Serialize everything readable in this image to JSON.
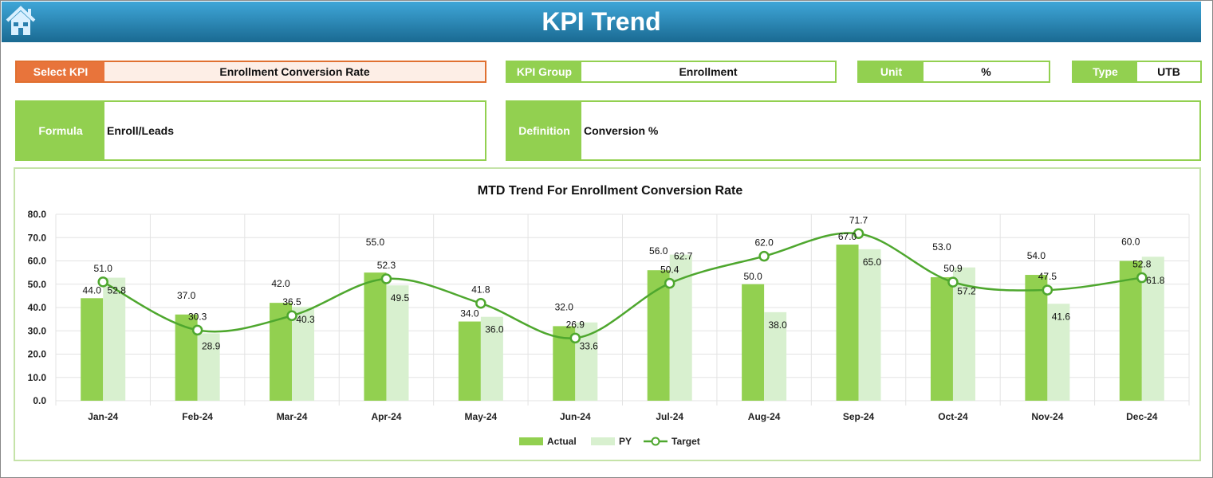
{
  "header": {
    "title": "KPI Trend",
    "home_icon": "home-icon"
  },
  "fields": {
    "select_kpi": {
      "label": "Select KPI",
      "value": "Enrollment Conversion Rate"
    },
    "kpi_group": {
      "label": "KPI Group",
      "value": "Enrollment"
    },
    "unit": {
      "label": "Unit",
      "value": "%"
    },
    "type": {
      "label": "Type",
      "value": "UTB"
    },
    "formula": {
      "label": "Formula",
      "value": "Enroll/Leads"
    },
    "definition": {
      "label": "Definition",
      "value": "Conversion %"
    }
  },
  "colors": {
    "actual": "#92d050",
    "py": "#d8f0cf",
    "target": "#4ea72e",
    "header": "#1f7aa6",
    "select": "#e8743b"
  },
  "chart_data": {
    "type": "bar",
    "title": "MTD Trend For Enrollment Conversion Rate",
    "categories": [
      "Jan-24",
      "Feb-24",
      "Mar-24",
      "Apr-24",
      "May-24",
      "Jun-24",
      "Jul-24",
      "Aug-24",
      "Sep-24",
      "Oct-24",
      "Nov-24",
      "Dec-24"
    ],
    "series": [
      {
        "name": "Actual",
        "type": "bar",
        "values": [
          44.0,
          37.0,
          42.0,
          55.0,
          34.0,
          32.0,
          56.0,
          50.0,
          67.0,
          53.0,
          54.0,
          60.0
        ]
      },
      {
        "name": "PY",
        "type": "bar",
        "values": [
          52.8,
          28.9,
          40.3,
          49.5,
          36.0,
          33.6,
          62.7,
          38.0,
          65.0,
          57.2,
          41.6,
          61.8
        ]
      },
      {
        "name": "Target",
        "type": "line",
        "values": [
          51.0,
          30.3,
          36.5,
          52.3,
          41.8,
          26.9,
          50.4,
          62.0,
          71.7,
          50.9,
          47.5,
          52.8
        ]
      }
    ],
    "yticks": [
      "0.0",
      "10.0",
      "20.0",
      "30.0",
      "40.0",
      "50.0",
      "60.0",
      "70.0",
      "80.0"
    ],
    "ylim": [
      0,
      80
    ],
    "grid": true,
    "legend": "bottom"
  }
}
